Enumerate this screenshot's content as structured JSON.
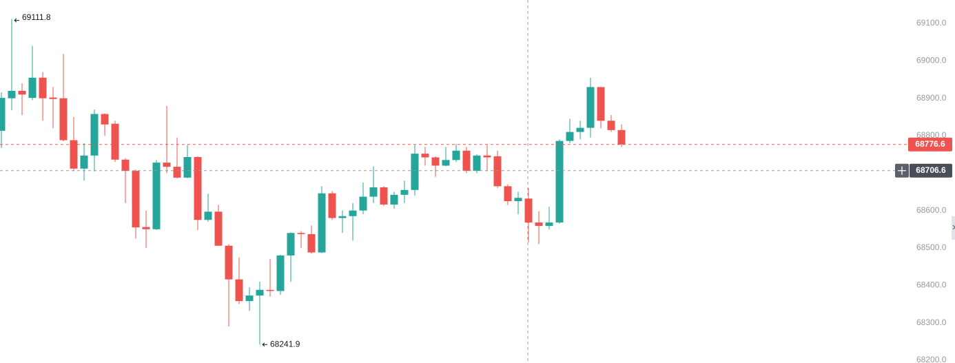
{
  "chart_data": {
    "type": "candlestick",
    "up_color": "#26a69a",
    "down_color": "#ef5350",
    "grid": false,
    "ylim": [
      68192.6,
      69162.6
    ],
    "yticks": [
      {
        "value": 68200,
        "label": "68200.0"
      },
      {
        "value": 68300,
        "label": "68300.0"
      },
      {
        "value": 68400,
        "label": "68400.0"
      },
      {
        "value": 68500,
        "label": "68500.0"
      },
      {
        "value": 68600,
        "label": "68600.0"
      },
      {
        "value": 68700,
        "label": "68700.0"
      },
      {
        "value": 68800,
        "label": "68800.0"
      },
      {
        "value": 68900,
        "label": "68900.0"
      },
      {
        "value": 69000,
        "label": "69000.0"
      },
      {
        "value": 69100,
        "label": "69100.0"
      }
    ],
    "crosshair_price": 68706.6,
    "open": [
      68813,
      68900,
      68920,
      68901,
      68955,
      68902,
      68900,
      68788,
      68712,
      68747,
      68858,
      68832,
      68736,
      68706,
      68556,
      68550,
      68728,
      68717,
      68688,
      68743,
      68575,
      68597,
      68506,
      68416,
      68358,
      68373,
      68388,
      68385,
      68480,
      68540,
      68537,
      68488,
      68646,
      68580,
      68585,
      68600,
      68637,
      68662,
      68616,
      68642,
      68655,
      68752,
      68742,
      68720,
      68735,
      68760,
      68706,
      68747,
      68745,
      68665,
      68625,
      68632,
      68568,
      68559,
      68568,
      68786,
      68810,
      68821,
      68930,
      68840,
      68815
    ],
    "high": [
      68916,
      69111.8,
      68940,
      69040,
      68970,
      68930,
      69018,
      68850,
      68780,
      68870,
      68860,
      68840,
      68740,
      68710,
      68600,
      68735,
      68880,
      68795,
      68775,
      68745,
      68645,
      68615,
      68510,
      68475,
      68395,
      68410,
      68470,
      68482,
      68542,
      68545,
      68560,
      68665,
      68652,
      68600,
      68620,
      68675,
      68718,
      68665,
      68650,
      68680,
      68775,
      68770,
      68745,
      68770,
      68778,
      68770,
      68750,
      68775,
      68760,
      68670,
      68650,
      68660,
      68598,
      68610,
      68790,
      68845,
      68840,
      68955,
      68930,
      68855,
      68830
    ],
    "low": [
      68767,
      68868,
      68855,
      68895,
      68840,
      68820,
      68785,
      68705,
      68680,
      68705,
      68800,
      68730,
      68620,
      68525,
      68500,
      68548,
      68700,
      68686,
      68686,
      68548,
      68570,
      68505,
      68290,
      68350,
      68332,
      68241.9,
      68370,
      68375,
      68410,
      68500,
      68485,
      68486,
      68575,
      68540,
      68520,
      68590,
      68620,
      68612,
      68605,
      68620,
      68640,
      68720,
      68690,
      68718,
      68730,
      68700,
      68700,
      68705,
      68660,
      68615,
      68590,
      68515,
      68510,
      68550,
      68565,
      68780,
      68790,
      68795,
      68820,
      68810,
      68770
    ],
    "close": [
      68901,
      68920,
      68910,
      68955,
      68900,
      68898,
      68788,
      68712,
      68747,
      68858,
      68830,
      68736,
      68706,
      68555,
      68550,
      68728,
      68717,
      68688,
      68743,
      68575,
      68597,
      68506,
      68416,
      68358,
      68373,
      68388,
      68385,
      68480,
      68540,
      68537,
      68488,
      68646,
      68580,
      68585,
      68600,
      68637,
      68662,
      68616,
      68642,
      68655,
      68752,
      68742,
      68720,
      68735,
      68760,
      68706,
      68747,
      68742,
      68665,
      68625,
      68634,
      68568,
      68559,
      68568,
      68786,
      68810,
      68821,
      68930,
      68840,
      68815,
      68776.6
    ]
  }
}
